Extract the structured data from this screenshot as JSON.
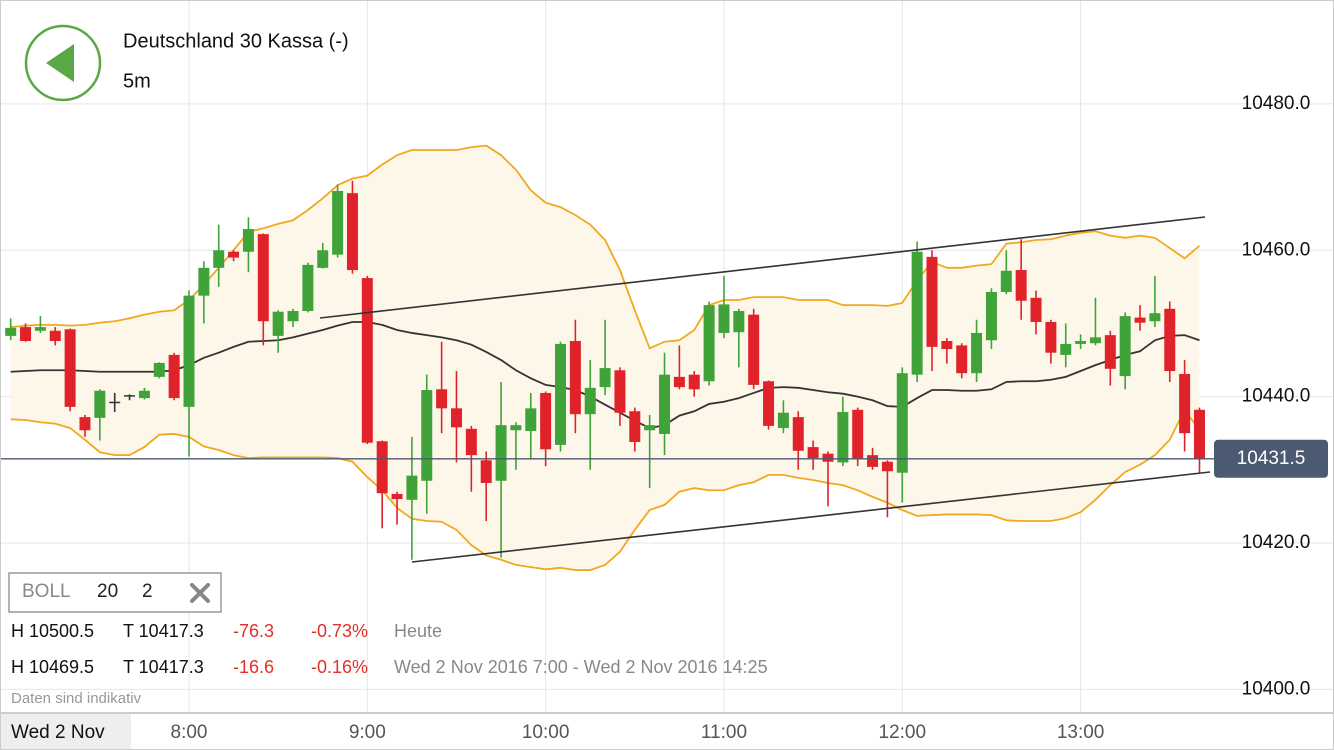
{
  "header": {
    "title": "Deutschland 30 Kassa (-)",
    "interval": "5m"
  },
  "indicator": {
    "name": "BOLL",
    "period": "20",
    "deviation": "2"
  },
  "stats": [
    [
      "H 10500.5",
      "T 10417.3",
      "-76.3",
      "-0.73%",
      "Heute"
    ],
    [
      "H 10469.5",
      "T 10417.3",
      "-16.6",
      "-0.16%",
      "Wed 2 Nov 2016 7:00 - Wed 2 Nov 2016 14:25"
    ]
  ],
  "disclaimer": "Daten sind indikativ",
  "date_label": "Wed 2 Nov",
  "chart_data": {
    "type": "candlestick",
    "categories": [
      null,
      null,
      null,
      null,
      null,
      null,
      null,
      null,
      null,
      null,
      null,
      null,
      "8:00",
      null,
      null,
      null,
      null,
      null,
      null,
      null,
      null,
      null,
      null,
      null,
      "9:00",
      null,
      null,
      null,
      null,
      null,
      null,
      null,
      null,
      null,
      null,
      null,
      "10:00",
      null,
      null,
      null,
      null,
      null,
      null,
      null,
      null,
      null,
      null,
      null,
      "11:00",
      null,
      null,
      null,
      null,
      null,
      null,
      null,
      null,
      null,
      null,
      null,
      "12:00",
      null,
      null,
      null,
      null,
      null,
      null,
      null,
      null,
      null,
      null,
      null,
      "13:00",
      null,
      null,
      null,
      null,
      null,
      null,
      null,
      null
    ],
    "open": [
      10448.3,
      10449.5,
      10449,
      10449,
      10449.2,
      10437.2,
      10437.1,
      10439.3,
      10440.2,
      10439.8,
      10442.7,
      10445.7,
      10438.6,
      10453.8,
      10457.6,
      10459.8,
      10459.8,
      10462.2,
      10448.3,
      10450.3,
      10451.7,
      10457.6,
      10459.4,
      10467.8,
      10456.2,
      10433.9,
      10426.7,
      10425.9,
      10428.5,
      10441,
      10438.4,
      10435.6,
      10431.3,
      10428.5,
      10435.4,
      10435.3,
      10440.5,
      10433.4,
      10447.6,
      10437.6,
      10441.3,
      10443.6,
      10438,
      10435.4,
      10434.9,
      10442.7,
      10443,
      10442.1,
      10448.7,
      10448.8,
      10451.2,
      10442.1,
      10435.7,
      10437.2,
      10433.1,
      10432.2,
      10431,
      10438.2,
      10432,
      10431.1,
      10429.6,
      10443,
      10459.1,
      10447.6,
      10447,
      10443.2,
      10447.7,
      10454.3,
      10457.3,
      10453.5,
      10450.2,
      10445.7,
      10447.2,
      10447.3,
      10448.4,
      10442.8,
      10450.8,
      10450.3,
      10452,
      10443.1,
      10438.2
    ],
    "high": [
      10450.7,
      10450,
      10451,
      10449.5,
      10449.3,
      10437.5,
      10441,
      10440.5,
      10440.3,
      10441.2,
      10444.7,
      10446,
      10454.5,
      10458.5,
      10463.5,
      10460,
      10464.5,
      10462.3,
      10451.8,
      10452,
      10458.3,
      10461,
      10469,
      10469.5,
      10456.5,
      10434,
      10427,
      10434.5,
      10443,
      10447.5,
      10443.5,
      10436,
      10432.5,
      10442,
      10436.5,
      10440.5,
      10440.7,
      10447.5,
      10450.5,
      10445,
      10450.5,
      10444,
      10438.5,
      10437.5,
      10446,
      10447,
      10443.5,
      10453,
      10456.5,
      10452,
      10452,
      10442.2,
      10439.5,
      10438,
      10434,
      10432.5,
      10440,
      10438.5,
      10433,
      10431.3,
      10444,
      10461.2,
      10460,
      10448,
      10447.3,
      10450.5,
      10454.8,
      10460,
      10461.5,
      10454.5,
      10450.5,
      10450,
      10448.5,
      10453.5,
      10449,
      10451.5,
      10452.5,
      10456.5,
      10453,
      10445,
      10438.5
    ],
    "low": [
      10447.7,
      10447.5,
      10448.7,
      10447,
      10438,
      10434.5,
      10434,
      10437.9,
      10439.5,
      10439.6,
      10442.5,
      10439.5,
      10431.8,
      10450,
      10455,
      10458.5,
      10457,
      10447,
      10446,
      10449.5,
      10451.5,
      10457.5,
      10459,
      10456.8,
      10433.5,
      10422,
      10422.5,
      10417.7,
      10424,
      10435,
      10431,
      10427,
      10423,
      10418,
      10430,
      10431.5,
      10430.5,
      10432.5,
      10435,
      10430,
      10440.2,
      10436,
      10432.5,
      10427.5,
      10432,
      10441,
      10440,
      10441.5,
      10448,
      10444,
      10441,
      10435.5,
      10435,
      10430,
      10430,
      10425,
      10430.5,
      10430.5,
      10430,
      10423.5,
      10425.5,
      10442,
      10443.5,
      10444.5,
      10442.5,
      10442,
      10446.5,
      10454,
      10450.5,
      10448.5,
      10444.5,
      10444,
      10446.5,
      10447,
      10441.5,
      10441,
      10449,
      10449.5,
      10442,
      10432.5,
      10429.5
    ],
    "close": [
      10449.4,
      10447.6,
      10449.5,
      10447.6,
      10438.6,
      10435.4,
      10440.8,
      10439.3,
      10440.2,
      10440.8,
      10444.6,
      10439.8,
      10453.8,
      10457.6,
      10460,
      10459,
      10462.9,
      10450.3,
      10451.6,
      10451.7,
      10458,
      10460,
      10468.1,
      10457.3,
      10433.7,
      10426.8,
      10426,
      10429.2,
      10440.9,
      10438.4,
      10435.8,
      10432,
      10428.2,
      10436.1,
      10436.1,
      10438.4,
      10432.8,
      10447.2,
      10437.6,
      10441.2,
      10443.9,
      10437.8,
      10433.8,
      10436.1,
      10443,
      10441.3,
      10441,
      10452.5,
      10452.6,
      10451.7,
      10441.6,
      10436,
      10437.8,
      10432.6,
      10431.6,
      10431.1,
      10437.9,
      10431.5,
      10430.4,
      10429.8,
      10443.2,
      10459.8,
      10446.8,
      10446.5,
      10443.2,
      10448.7,
      10454.3,
      10457.2,
      10453.1,
      10450.2,
      10446,
      10447.2,
      10447.6,
      10448.1,
      10443.8,
      10451,
      10450.1,
      10451.4,
      10443.5,
      10435,
      10431.5
    ],
    "up_color": "#3fa33a",
    "down_color": "#e0222a",
    "flat_color": "#333333",
    "bands": {
      "color": "#f2a81d",
      "middle_color": "#333333",
      "fill": "#fdf7ea",
      "upper": [
        10449.5,
        10449.7,
        10449.8,
        10449.8,
        10449.7,
        10449.8,
        10450.1,
        10450.3,
        10450.7,
        10451.2,
        10451.6,
        10451.8,
        10453.2,
        10455.3,
        10457.6,
        10460.0,
        10462.5,
        10463.0,
        10463.6,
        10464.1,
        10465.5,
        10467.1,
        10468.9,
        10469.8,
        10470.2,
        10471.7,
        10473.0,
        10473.7,
        10473.7,
        10473.7,
        10473.7,
        10474.1,
        10474.3,
        10473.0,
        10471.0,
        10468.2,
        10466.5,
        10465.9,
        10464.8,
        10463.5,
        10461.4,
        10457.3,
        10451.8,
        10446.6,
        10447.5,
        10447.7,
        10449.1,
        10452.5,
        10453.2,
        10453.2,
        10453.6,
        10453.6,
        10453.6,
        10453.2,
        10453.2,
        10453.2,
        10452.5,
        10452.5,
        10452.5,
        10452.4,
        10452.8,
        10455.9,
        10458.4,
        10457.6,
        10457.6,
        10457.9,
        10458.1,
        10460.9,
        10461.1,
        10461.4,
        10461.5,
        10462.0,
        10462.4,
        10462.6,
        10462.0,
        10461.7,
        10462.0,
        10461.7,
        10460.3,
        10458.9,
        10460.6
      ],
      "middle": [
        10443.4,
        10443.5,
        10443.6,
        10443.6,
        10443.6,
        10443.5,
        10443.4,
        10443.4,
        10443.4,
        10443.4,
        10443.4,
        10443.6,
        10444.3,
        10445.3,
        10446.0,
        10446.8,
        10447.5,
        10447.6,
        10447.7,
        10448.1,
        10448.6,
        10449.1,
        10449.7,
        10450.2,
        10450.2,
        10449.8,
        10449.1,
        10448.7,
        10448.4,
        10448.1,
        10447.7,
        10447.1,
        10446.1,
        10445.0,
        10443.6,
        10442.5,
        10441.6,
        10441.3,
        10440.9,
        10440.0,
        10438.9,
        10437.8,
        10436.7,
        10435.7,
        10436.1,
        10437.4,
        10438.0,
        10439.0,
        10439.3,
        10439.8,
        10440.5,
        10441.2,
        10441.3,
        10441.2,
        10440.9,
        10440.6,
        10440.4,
        10440.0,
        10439.5,
        10438.7,
        10438.6,
        10439.8,
        10440.9,
        10440.9,
        10440.8,
        10440.8,
        10441.0,
        10442.0,
        10442.1,
        10442.1,
        10442.3,
        10442.7,
        10443.5,
        10444.3,
        10445.0,
        10445.7,
        10446.2,
        10447.7,
        10448.3,
        10448.4,
        10447.7
      ],
      "lower": [
        10436.9,
        10436.8,
        10436.5,
        10436.3,
        10435.7,
        10434.1,
        10432.4,
        10432.0,
        10432.0,
        10433.1,
        10434.8,
        10434.9,
        10434.5,
        10433.2,
        10432.7,
        10432.0,
        10431.6,
        10431.7,
        10431.7,
        10431.7,
        10431.7,
        10431.7,
        10431.6,
        10431.1,
        10429.0,
        10427.2,
        10424.8,
        10423.3,
        10423.0,
        10422.9,
        10421.8,
        10419.7,
        10418.3,
        10417.7,
        10417.0,
        10416.7,
        10416.4,
        10416.6,
        10416.3,
        10416.3,
        10417.0,
        10418.8,
        10421.8,
        10424.5,
        10425.2,
        10427.0,
        10427.5,
        10427.2,
        10427.2,
        10427.9,
        10428.3,
        10429.3,
        10429.3,
        10428.9,
        10428.6,
        10428.2,
        10427.9,
        10427.2,
        10426.3,
        10425.5,
        10424.5,
        10423.7,
        10423.8,
        10423.9,
        10423.9,
        10423.9,
        10423.8,
        10423.1,
        10423.0,
        10423.0,
        10423.0,
        10423.4,
        10424.2,
        10425.9,
        10427.9,
        10429.7,
        10430.7,
        10432.0,
        10434.1,
        10438.2,
        10435.4
      ]
    },
    "last_price": 10431.5,
    "ylim": [
      10396.9,
      10494.2
    ],
    "yticks": [
      {
        "value": 10400,
        "label": "10400.0"
      },
      {
        "value": 10420,
        "label": "10420.0"
      },
      {
        "value": 10440,
        "label": "10440.0"
      },
      {
        "value": 10460,
        "label": "10460.0"
      },
      {
        "value": 10480,
        "label": "10480.0"
      }
    ],
    "grid": true
  }
}
